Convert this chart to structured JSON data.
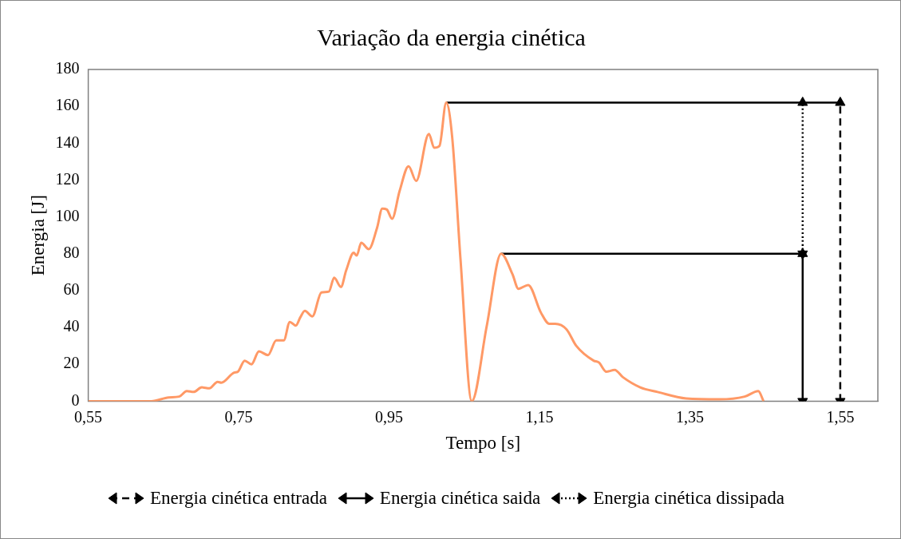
{
  "chart_data": {
    "type": "line",
    "title": "Variação da energia cinética",
    "xlabel": "Tempo [s]",
    "ylabel": "Energia [J]",
    "xlim": [
      0.55,
      1.6
    ],
    "xticks": [
      {
        "value": 0.55,
        "label": "0,55"
      },
      {
        "value": 0.75,
        "label": "0,75"
      },
      {
        "value": 0.95,
        "label": "0,95"
      },
      {
        "value": 1.15,
        "label": "1,15"
      },
      {
        "value": 1.35,
        "label": "1,35"
      },
      {
        "value": 1.55,
        "label": "1,55"
      }
    ],
    "ylim": [
      0,
      180
    ],
    "yticks": [
      0,
      20,
      40,
      60,
      80,
      100,
      120,
      140,
      160,
      180
    ],
    "grid": false,
    "legend": "bottom",
    "series": [
      {
        "color": "#ff9966",
        "line_style": "solid",
        "x": [
          0.55,
          0.634,
          0.657,
          0.671,
          0.681,
          0.69,
          0.701,
          0.711,
          0.722,
          0.727,
          0.744,
          0.749,
          0.758,
          0.767,
          0.777,
          0.789,
          0.8,
          0.81,
          0.818,
          0.826,
          0.832,
          0.838,
          0.848,
          0.86,
          0.87,
          0.877,
          0.886,
          0.893,
          0.903,
          0.907,
          0.913,
          0.923,
          0.934,
          0.941,
          0.947,
          0.954,
          0.964,
          0.976,
          0.986,
          1.003,
          1.01,
          1.017,
          1.026,
          1.034,
          1.045,
          1.06,
          1.08,
          1.099,
          1.114,
          1.122,
          1.135,
          1.152,
          1.163,
          1.171,
          1.186,
          1.199,
          1.222,
          1.229,
          1.239,
          1.25,
          1.261,
          1.284,
          1.307,
          1.345,
          1.389,
          1.423,
          1.441,
          1.448
        ],
        "values": [
          0,
          0,
          2,
          2.5,
          5.5,
          5,
          7.5,
          7,
          10.5,
          10,
          15.5,
          16,
          22,
          20,
          27,
          25,
          33,
          33,
          43,
          41,
          45.5,
          49,
          46,
          59,
          59.5,
          67,
          62,
          71,
          80.5,
          79,
          86,
          82.5,
          94,
          104.5,
          104,
          99,
          114,
          127.5,
          119.5,
          145,
          137.5,
          138.5,
          162,
          143,
          77,
          0,
          41,
          80,
          69,
          61,
          63,
          48,
          42,
          42,
          39,
          30,
          22,
          21,
          16,
          17,
          13,
          7.5,
          5,
          1.5,
          1,
          2.5,
          5.5,
          0
        ]
      },
      {
        "color": "#000000",
        "line_style": "solid",
        "x": [
          1.026,
          1.55
        ],
        "values": [
          162,
          162
        ]
      },
      {
        "color": "#000000",
        "line_style": "solid",
        "x": [
          1.099,
          1.5
        ],
        "values": [
          80,
          80
        ]
      },
      {
        "name": "Energia cinética entrada",
        "color": "#000000",
        "line_style": "dashed",
        "marker": "triangle",
        "x": [
          1.55,
          1.55
        ],
        "values": [
          0,
          162
        ]
      },
      {
        "name": "Energia cinética saida",
        "color": "#000000",
        "line_style": "solid",
        "marker": "triangle",
        "x": [
          1.5,
          1.5
        ],
        "values": [
          0,
          80
        ]
      },
      {
        "name": "Energia cinética dissipada",
        "color": "#000000",
        "line_style": "dotted",
        "marker": "triangle",
        "x": [
          1.5,
          1.5
        ],
        "values": [
          80,
          162
        ]
      }
    ]
  }
}
